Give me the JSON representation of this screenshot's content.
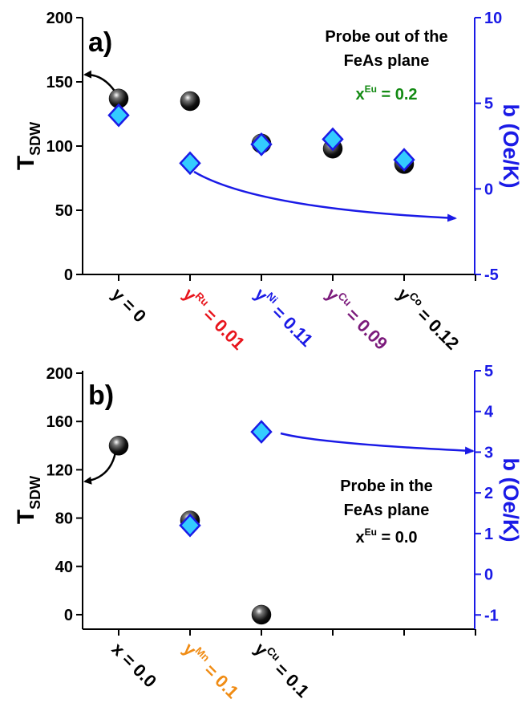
{
  "chart_data": [
    {
      "type": "scatter",
      "panel_label": "a)",
      "categories": [
        "y = 0",
        {
          "base": "y",
          "sup": "Ru",
          "rest": " = 0.01",
          "color": "#e8141c"
        },
        {
          "base": "y",
          "sup": "Ni",
          "rest": " = 0.11",
          "color": "#1a1ae6"
        },
        {
          "base": "y",
          "sup": "Cu",
          "rest": " = 0.09",
          "color": "#7b1a7b"
        },
        {
          "base": "y",
          "sup": "Co",
          "rest": " = 0.12",
          "color": "#000000"
        }
      ],
      "series": [
        {
          "marker": "sphere",
          "color": "#000000",
          "values": [
            137,
            135,
            102,
            98,
            86
          ]
        },
        {
          "marker": "diamond",
          "color": "#33ccff",
          "axis": "y2",
          "values": [
            4.3,
            1.5,
            2.6,
            2.9,
            1.7
          ]
        }
      ],
      "ylabel": {
        "text": "T",
        "sub": "SDW"
      },
      "y2label": "b (Oe/K)",
      "ylim": [
        0,
        200
      ],
      "yticks": [
        0,
        50,
        100,
        150,
        200
      ],
      "y2lim": [
        -5,
        10
      ],
      "y2ticks": [
        -5,
        0,
        5,
        10
      ],
      "annotation": [
        "Probe out of the",
        "FeAs plane"
      ],
      "annotation2": {
        "base": "x",
        "sup": "Eu",
        "rest": " = 0.2",
        "color": "#138a13"
      }
    },
    {
      "type": "scatter",
      "panel_label": "b)",
      "categories": [
        "x = 0.0",
        {
          "base": "y",
          "sup": "Mn",
          "rest": " = 0.1",
          "color": "#f08c14"
        },
        {
          "base": "y",
          "sup": "Cu",
          "rest": " = 0.1",
          "color": "#000000"
        },
        null,
        null
      ],
      "series": [
        {
          "marker": "sphere",
          "color": "#000000",
          "values": [
            140,
            78,
            0,
            null,
            null
          ]
        },
        {
          "marker": "diamond",
          "color": "#33ccff",
          "axis": "y2",
          "values": [
            null,
            1.2,
            3.5,
            null,
            null
          ]
        }
      ],
      "ylabel": {
        "text": "T",
        "sub": "SDW"
      },
      "y2label": "b (Oe/K)",
      "ylim": [
        -12,
        202
      ],
      "yticks": [
        0,
        40,
        80,
        120,
        160,
        200
      ],
      "y2lim": [
        -1.35,
        5
      ],
      "y2ticks": [
        -1,
        0,
        1,
        2,
        3,
        4,
        5
      ],
      "annotation": [
        "Probe in the",
        "FeAs plane"
      ],
      "annotation2": {
        "base": "x",
        "sup": "Eu",
        "rest": " = 0.0",
        "color": "#000000"
      }
    }
  ]
}
